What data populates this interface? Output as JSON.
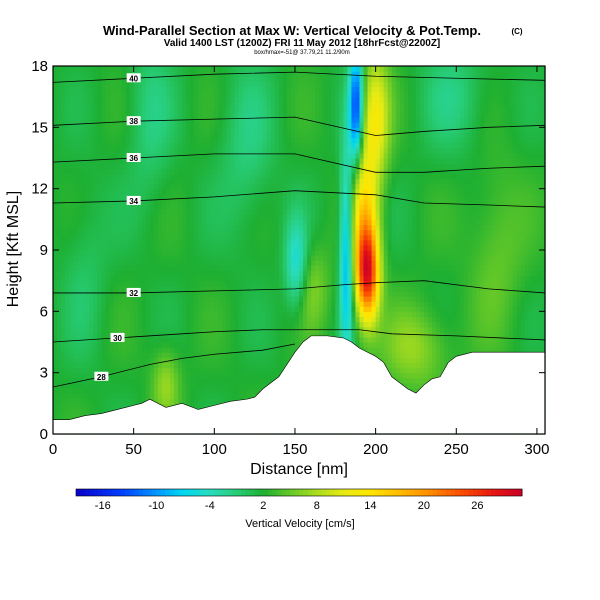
{
  "chart_data": {
    "type": "heatmap",
    "title": "Wind-Parallel Section at Max W: Vertical Velocity & Pot.Temp.",
    "title_mark": "(C)",
    "subtitle": "Valid 1400 LST (1200Z) FRI 11 May 2012 [18hrFcst@2200Z]",
    "subtitle2": "box/hmax=-51@ 37.79,21 11.2/90m",
    "xlabel": "Distance [nm]",
    "ylabel": "Height [Kft MSL]",
    "xlim": [
      0,
      305
    ],
    "ylim": [
      0,
      18
    ],
    "x_ticks": [
      0,
      50,
      100,
      150,
      200,
      250,
      300
    ],
    "y_ticks": [
      0,
      3,
      6,
      9,
      12,
      15,
      18
    ],
    "colorbar": {
      "label": "Vertical Velocity [cm/s]",
      "ticks": [
        -16,
        -10,
        -4,
        2,
        8,
        14,
        20,
        26
      ],
      "range": [
        -19,
        31
      ]
    },
    "terrain_x": [
      0,
      10,
      20,
      30,
      40,
      50,
      55,
      60,
      70,
      80,
      90,
      100,
      110,
      120,
      125,
      130,
      140,
      145,
      150,
      155,
      160,
      170,
      180,
      185,
      190,
      195,
      200,
      205,
      210,
      220,
      225,
      230,
      235,
      240,
      245,
      250,
      260,
      280,
      300,
      305
    ],
    "terrain_y": [
      0.7,
      0.7,
      0.9,
      1.0,
      1.2,
      1.4,
      1.5,
      1.7,
      1.3,
      1.5,
      1.2,
      1.4,
      1.6,
      1.7,
      1.8,
      2.2,
      2.8,
      3.4,
      4.0,
      4.5,
      4.8,
      4.8,
      4.7,
      4.5,
      4.2,
      4.0,
      3.8,
      3.5,
      2.8,
      2.2,
      2.0,
      2.4,
      2.7,
      2.8,
      3.5,
      3.8,
      4.0,
      4.0,
      4.0,
      4.0
    ],
    "theta_contours": [
      {
        "label": "28",
        "x": [
          0,
          30,
          60,
          80,
          100,
          130,
          150
        ],
        "y": [
          2.3,
          2.8,
          3.4,
          3.7,
          3.9,
          4.1,
          4.4
        ]
      },
      {
        "label": "30",
        "x": [
          0,
          40,
          80,
          100,
          130,
          160,
          190,
          210,
          250,
          305
        ],
        "y": [
          4.5,
          4.7,
          4.9,
          5.0,
          5.1,
          5.1,
          5.1,
          4.9,
          4.8,
          4.6
        ]
      },
      {
        "label": "32",
        "x": [
          0,
          50,
          100,
          150,
          180,
          200,
          230,
          270,
          305
        ],
        "y": [
          6.9,
          6.9,
          7.0,
          7.1,
          7.3,
          7.4,
          7.5,
          7.1,
          6.9
        ]
      },
      {
        "label": "34",
        "x": [
          0,
          50,
          100,
          150,
          200,
          230,
          270,
          305
        ],
        "y": [
          11.3,
          11.4,
          11.6,
          11.9,
          11.7,
          11.3,
          11.2,
          11.1
        ]
      },
      {
        "label": "36",
        "x": [
          0,
          50,
          100,
          150,
          200,
          230,
          270,
          305
        ],
        "y": [
          13.3,
          13.5,
          13.7,
          13.7,
          12.8,
          12.8,
          13.0,
          13.1
        ]
      },
      {
        "label": "38",
        "x": [
          0,
          50,
          100,
          150,
          200,
          230,
          270,
          305
        ],
        "y": [
          15.1,
          15.3,
          15.4,
          15.5,
          14.6,
          14.8,
          15.0,
          15.1
        ]
      },
      {
        "label": "40",
        "x": [
          0,
          50,
          100,
          150,
          200,
          250,
          305
        ],
        "y": [
          17.2,
          17.4,
          17.6,
          17.7,
          17.5,
          17.4,
          17.3
        ]
      }
    ],
    "w_features": [
      {
        "x": 195,
        "z": 7.8,
        "sx": 5,
        "sz": 1.6,
        "amp": 22
      },
      {
        "x": 193,
        "z": 10.5,
        "sx": 6,
        "sz": 2.5,
        "amp": 12
      },
      {
        "x": 200,
        "z": 15.5,
        "sx": 6,
        "sz": 2.2,
        "amp": 10
      },
      {
        "x": 182,
        "z": 9.0,
        "sx": 3,
        "sz": 3.5,
        "amp": -12
      },
      {
        "x": 188,
        "z": 16.0,
        "sx": 3,
        "sz": 2.0,
        "amp": -16
      },
      {
        "x": 151,
        "z": 8.2,
        "sx": 5,
        "sz": 1.6,
        "amp": -8
      },
      {
        "x": 160,
        "z": 7.2,
        "sx": 8,
        "sz": 1.5,
        "amp": 4
      },
      {
        "x": 70,
        "z": 2.5,
        "sx": 6,
        "sz": 1.2,
        "amp": 5
      },
      {
        "x": 225,
        "z": 4.2,
        "sx": 14,
        "sz": 1.4,
        "amp": 5
      },
      {
        "x": 120,
        "z": 14.0,
        "sx": 12,
        "sz": 3.0,
        "amp": -3
      },
      {
        "x": 60,
        "z": 15.5,
        "sx": 10,
        "sz": 3.0,
        "amp": -3
      },
      {
        "x": 250,
        "z": 16.5,
        "sx": 15,
        "sz": 2.0,
        "amp": -3
      },
      {
        "x": 20,
        "z": 8.0,
        "sx": 10,
        "sz": 3.0,
        "amp": -2
      },
      {
        "x": 275,
        "z": 9.0,
        "sx": 12,
        "sz": 3.0,
        "amp": 3
      }
    ],
    "w_base": 2
  }
}
